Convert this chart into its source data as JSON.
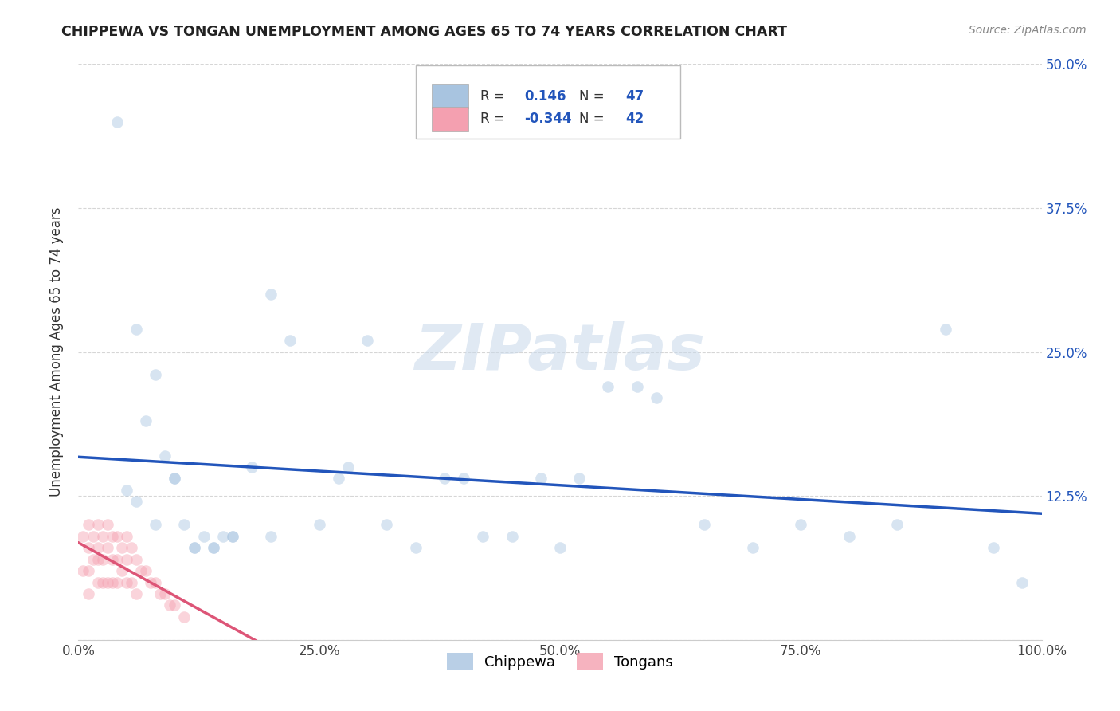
{
  "title": "CHIPPEWA VS TONGAN UNEMPLOYMENT AMONG AGES 65 TO 74 YEARS CORRELATION CHART",
  "source": "Source: ZipAtlas.com",
  "ylabel": "Unemployment Among Ages 65 to 74 years",
  "xlim": [
    0.0,
    1.0
  ],
  "ylim": [
    0.0,
    0.5
  ],
  "xticks": [
    0.0,
    0.25,
    0.5,
    0.75,
    1.0
  ],
  "xticklabels": [
    "0.0%",
    "25.0%",
    "50.0%",
    "75.0%",
    "100.0%"
  ],
  "yticks": [
    0.0,
    0.125,
    0.25,
    0.375,
    0.5
  ],
  "yticklabels": [
    "",
    "12.5%",
    "25.0%",
    "37.5%",
    "50.0%"
  ],
  "chippewa_color": "#a8c4e0",
  "tongan_color": "#f4a0b0",
  "chippewa_line_color": "#2255bb",
  "tongan_line_color": "#dd5577",
  "R_chippewa": 0.146,
  "N_chippewa": 47,
  "R_tongan": -0.344,
  "N_tongan": 42,
  "chippewa_x": [
    0.04,
    0.06,
    0.07,
    0.08,
    0.09,
    0.1,
    0.11,
    0.12,
    0.13,
    0.14,
    0.15,
    0.16,
    0.18,
    0.2,
    0.22,
    0.27,
    0.28,
    0.3,
    0.32,
    0.38,
    0.4,
    0.45,
    0.48,
    0.5,
    0.52,
    0.58,
    0.6,
    0.65,
    0.7,
    0.75,
    0.8,
    0.85,
    0.9,
    0.95,
    0.98,
    0.05,
    0.06,
    0.08,
    0.1,
    0.12,
    0.14,
    0.16,
    0.2,
    0.25,
    0.35,
    0.42,
    0.55
  ],
  "chippewa_y": [
    0.45,
    0.27,
    0.19,
    0.23,
    0.16,
    0.14,
    0.1,
    0.08,
    0.09,
    0.08,
    0.09,
    0.09,
    0.15,
    0.3,
    0.26,
    0.14,
    0.15,
    0.26,
    0.1,
    0.14,
    0.14,
    0.09,
    0.14,
    0.08,
    0.14,
    0.22,
    0.21,
    0.1,
    0.08,
    0.1,
    0.09,
    0.1,
    0.27,
    0.08,
    0.05,
    0.13,
    0.12,
    0.1,
    0.14,
    0.08,
    0.08,
    0.09,
    0.09,
    0.1,
    0.08,
    0.09,
    0.22
  ],
  "tongan_x": [
    0.005,
    0.005,
    0.01,
    0.01,
    0.01,
    0.01,
    0.015,
    0.015,
    0.02,
    0.02,
    0.02,
    0.02,
    0.025,
    0.025,
    0.025,
    0.03,
    0.03,
    0.03,
    0.035,
    0.035,
    0.035,
    0.04,
    0.04,
    0.04,
    0.045,
    0.045,
    0.05,
    0.05,
    0.05,
    0.055,
    0.055,
    0.06,
    0.06,
    0.065,
    0.07,
    0.075,
    0.08,
    0.085,
    0.09,
    0.095,
    0.1,
    0.11
  ],
  "tongan_y": [
    0.09,
    0.06,
    0.1,
    0.08,
    0.06,
    0.04,
    0.09,
    0.07,
    0.1,
    0.08,
    0.07,
    0.05,
    0.09,
    0.07,
    0.05,
    0.1,
    0.08,
    0.05,
    0.09,
    0.07,
    0.05,
    0.09,
    0.07,
    0.05,
    0.08,
    0.06,
    0.09,
    0.07,
    0.05,
    0.08,
    0.05,
    0.07,
    0.04,
    0.06,
    0.06,
    0.05,
    0.05,
    0.04,
    0.04,
    0.03,
    0.03,
    0.02
  ],
  "watermark": "ZIPatlas",
  "background_color": "#ffffff",
  "grid_color": "#cccccc",
  "marker_size": 110,
  "marker_alpha": 0.45
}
